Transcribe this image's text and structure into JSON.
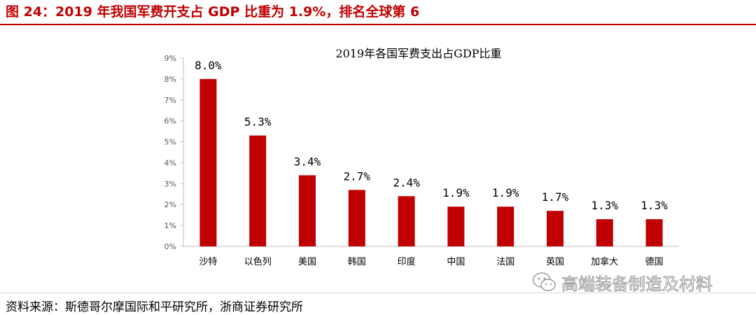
{
  "figure": {
    "title": "图 24：2019 年我国军费开支占 GDP 比重为 1.9%，排名全球第 6",
    "source": "资料来源：斯德哥尔摩国际和平研究所，浙商证券研究所"
  },
  "watermark": {
    "text": "高端装备制造及材料",
    "icon": "wechat-icon"
  },
  "colors": {
    "accent": "#c00000",
    "bar": "#c00000",
    "axis": "#bfbfbf",
    "text": "#595959"
  },
  "chart_data": {
    "type": "bar",
    "title": "2019年各国军费支出占GDP比重",
    "xlabel": "",
    "ylabel": "",
    "categories": [
      "沙特",
      "以色列",
      "美国",
      "韩国",
      "印度",
      "中国",
      "法国",
      "英国",
      "加拿大",
      "德国"
    ],
    "values": [
      8.0,
      5.3,
      3.4,
      2.7,
      2.4,
      1.9,
      1.9,
      1.7,
      1.3,
      1.3
    ],
    "value_labels": [
      "8.0%",
      "5.3%",
      "3.4%",
      "2.7%",
      "2.4%",
      "1.9%",
      "1.9%",
      "1.7%",
      "1.3%",
      "1.3%"
    ],
    "yticks": [
      0,
      1,
      2,
      3,
      4,
      5,
      6,
      7,
      8,
      9
    ],
    "ytick_labels": [
      "0%",
      "1%",
      "2%",
      "3%",
      "4%",
      "5%",
      "6%",
      "7%",
      "8%",
      "9%"
    ],
    "ylim": [
      0,
      9
    ],
    "grid": false,
    "legend": "none"
  }
}
